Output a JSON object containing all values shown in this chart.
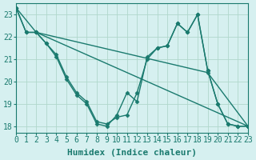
{
  "xlabel": "Humidex (Indice chaleur)",
  "xlim": [
    0,
    23
  ],
  "ylim": [
    17.7,
    23.5
  ],
  "yticks": [
    18,
    19,
    20,
    21,
    22,
    23
  ],
  "xticks": [
    0,
    1,
    2,
    3,
    4,
    5,
    6,
    7,
    8,
    9,
    10,
    11,
    12,
    13,
    14,
    15,
    16,
    17,
    18,
    19,
    20,
    21,
    22,
    23
  ],
  "bg_color": "#d6f0f0",
  "grid_color": "#b0d8cc",
  "line_color": "#1a7a6e",
  "series": [
    {
      "x": [
        0,
        1,
        2,
        3,
        4,
        5,
        6,
        7,
        8,
        9,
        10,
        11,
        12,
        13,
        14,
        15,
        16,
        17,
        18,
        19,
        20,
        21,
        22,
        23
      ],
      "y": [
        23.3,
        22.2,
        22.2,
        21.7,
        21.1,
        20.1,
        19.4,
        19.0,
        18.1,
        18.0,
        18.5,
        19.5,
        19.1,
        21.1,
        21.5,
        21.6,
        22.6,
        22.2,
        23.0,
        20.5,
        19.0,
        18.1,
        18.0,
        18.0
      ]
    },
    {
      "x": [
        0,
        1,
        2,
        3,
        4,
        5,
        6,
        7,
        8,
        9,
        10,
        11,
        12,
        13,
        14,
        15,
        16,
        17,
        18,
        19,
        20,
        21,
        22,
        23
      ],
      "y": [
        23.3,
        22.2,
        22.2,
        21.7,
        21.2,
        20.2,
        19.5,
        19.1,
        18.2,
        18.1,
        18.4,
        18.5,
        19.5,
        21.0,
        21.5,
        21.6,
        22.6,
        22.2,
        23.0,
        20.5,
        19.0,
        18.1,
        18.0,
        18.0
      ]
    },
    {
      "x": [
        0,
        2,
        19,
        23
      ],
      "y": [
        23.3,
        22.2,
        20.4,
        18.0
      ]
    },
    {
      "x": [
        2,
        23
      ],
      "y": [
        22.2,
        18.0
      ]
    }
  ],
  "marker": "D",
  "markersize": 2.5,
  "linewidth": 1.0,
  "font_size": 7
}
